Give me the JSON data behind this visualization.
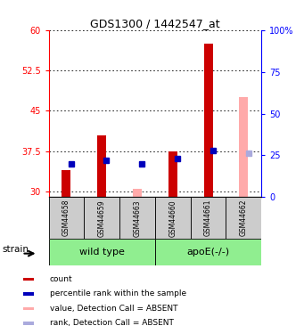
{
  "title": "GDS1300 / 1442547_at",
  "samples": [
    "GSM44658",
    "GSM44659",
    "GSM44663",
    "GSM44660",
    "GSM44661",
    "GSM44662"
  ],
  "ylim_left": [
    29,
    60
  ],
  "yticks_left": [
    30,
    37.5,
    45,
    52.5,
    60
  ],
  "ytick_labels_left": [
    "30",
    "37.5",
    "45",
    "52.5",
    "60"
  ],
  "ytick_labels_right": [
    "0",
    "25",
    "50",
    "75",
    "100%"
  ],
  "bar_bottom": 29,
  "count_values": [
    34.0,
    40.5,
    null,
    37.5,
    57.5,
    null
  ],
  "rank_values": [
    35.2,
    35.8,
    35.2,
    36.2,
    37.6,
    null
  ],
  "absent_value_values": [
    null,
    null,
    30.5,
    null,
    null,
    47.5
  ],
  "absent_rank_values": [
    null,
    null,
    null,
    null,
    null,
    37.2
  ],
  "count_color": "#cc0000",
  "rank_color": "#0000bb",
  "absent_value_color": "#ffaaaa",
  "absent_rank_color": "#aaaadd",
  "bar_width": 0.25,
  "group_bg_color": "#90EE90",
  "sample_bg_color": "#cccccc",
  "legend_items": [
    {
      "color": "#cc0000",
      "label": "count"
    },
    {
      "color": "#0000bb",
      "label": "percentile rank within the sample"
    },
    {
      "color": "#ffaaaa",
      "label": "value, Detection Call = ABSENT"
    },
    {
      "color": "#aaaadd",
      "label": "rank, Detection Call = ABSENT"
    }
  ]
}
